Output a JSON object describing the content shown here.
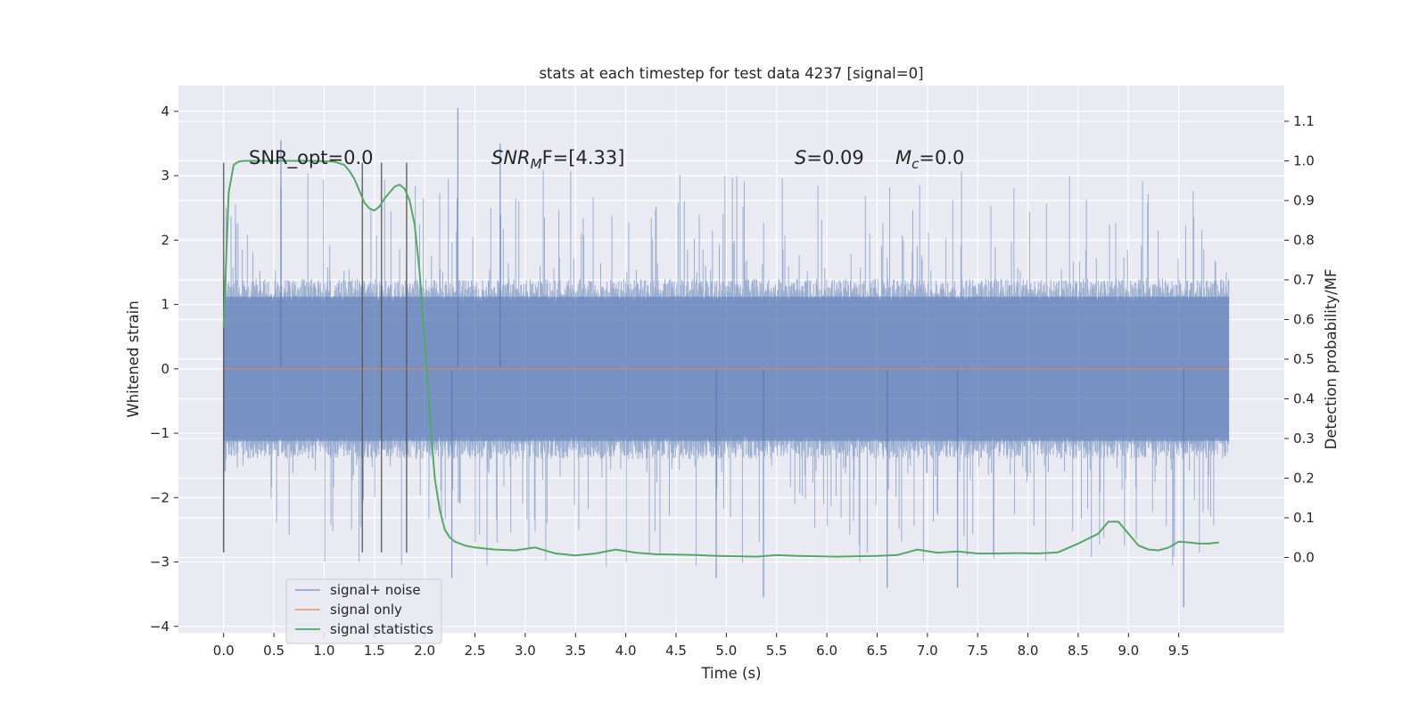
{
  "chart_data": {
    "type": "line",
    "title": "stats at each timestep for test data 4237 [signal=0]",
    "xlabel": "Time (s)",
    "ylabel": "Whitened strain",
    "y2label": "Detection probability/MF",
    "xlim": [
      -0.45,
      10.55
    ],
    "ylim": [
      -4.1,
      4.4
    ],
    "y2lim": [
      -0.19,
      1.19
    ],
    "xticks": [
      "0.0",
      "0.5",
      "1.0",
      "1.5",
      "2.0",
      "2.5",
      "3.0",
      "3.5",
      "4.0",
      "4.5",
      "5.0",
      "5.5",
      "6.0",
      "6.5",
      "7.0",
      "7.5",
      "8.0",
      "8.5",
      "9.0",
      "9.5"
    ],
    "yticks": [
      "4",
      "3",
      "2",
      "1",
      "0",
      "−1",
      "−2",
      "−3",
      "−4"
    ],
    "y2ticks": [
      "1.1",
      "1.0",
      "0.9",
      "0.8",
      "0.7",
      "0.6",
      "0.5",
      "0.4",
      "0.3",
      "0.2",
      "0.1",
      "0.0"
    ],
    "grid": true,
    "legend_position": "lower-left",
    "annotations": {
      "snr_opt": "SNR_opt=0.0",
      "snr_mf_main": "SNR",
      "snr_mf_sub": "M",
      "snr_mf_rest": "F=[4.33]",
      "s_var": "S",
      "s_val": "=0.09",
      "mc_var": "M",
      "mc_sub": "c",
      "mc_val": "=0.0"
    },
    "vertical_markers_x": [
      0.0,
      1.38,
      1.57,
      1.82
    ],
    "series": [
      {
        "name": "signal+ noise",
        "color": "#4c72b0",
        "x_range": [
          0.0,
          10.0
        ],
        "core_amplitude": 1.4,
        "spike_maxima": [
          {
            "x": 2.33,
            "y": 4.05
          },
          {
            "x": 2.27,
            "y": -3.25
          },
          {
            "x": 0.57,
            "y": 3.55
          },
          {
            "x": 5.37,
            "y": -3.55
          },
          {
            "x": 9.55,
            "y": -3.7
          },
          {
            "x": 2.75,
            "y": 3.5
          },
          {
            "x": 6.6,
            "y": -3.4
          },
          {
            "x": 4.9,
            "y": -3.25
          },
          {
            "x": 7.3,
            "y": -3.4
          },
          {
            "x": 0.0,
            "y": -2.85
          }
        ]
      },
      {
        "name": "signal only",
        "color": "#dd8452",
        "x": [
          0.0,
          10.0
        ],
        "y": [
          0.0,
          0.0
        ]
      },
      {
        "name": "signal statistics",
        "color": "#55a868",
        "axis": "right",
        "x": [
          0.0,
          0.05,
          0.1,
          0.15,
          0.2,
          0.3,
          0.5,
          0.7,
          0.9,
          1.1,
          1.2,
          1.25,
          1.3,
          1.35,
          1.4,
          1.45,
          1.5,
          1.55,
          1.6,
          1.65,
          1.7,
          1.75,
          1.8,
          1.85,
          1.9,
          1.95,
          2.0,
          2.05,
          2.1,
          2.15,
          2.2,
          2.25,
          2.3,
          2.4,
          2.5,
          2.7,
          2.9,
          3.1,
          3.3,
          3.5,
          3.7,
          3.9,
          4.1,
          4.3,
          4.5,
          4.7,
          4.9,
          5.1,
          5.3,
          5.5,
          5.7,
          5.9,
          6.1,
          6.3,
          6.5,
          6.7,
          6.9,
          7.1,
          7.3,
          7.5,
          7.7,
          7.9,
          8.1,
          8.3,
          8.5,
          8.7,
          8.8,
          8.9,
          9.0,
          9.1,
          9.2,
          9.3,
          9.4,
          9.5,
          9.6,
          9.7,
          9.8,
          9.9
        ],
        "y": [
          0.58,
          0.92,
          0.99,
          0.998,
          1.0,
          1.0,
          1.0,
          1.0,
          1.0,
          0.998,
          0.99,
          0.975,
          0.955,
          0.925,
          0.895,
          0.88,
          0.875,
          0.885,
          0.905,
          0.92,
          0.935,
          0.94,
          0.93,
          0.9,
          0.84,
          0.72,
          0.55,
          0.36,
          0.2,
          0.12,
          0.07,
          0.05,
          0.04,
          0.03,
          0.025,
          0.02,
          0.018,
          0.025,
          0.01,
          0.005,
          0.01,
          0.02,
          0.012,
          0.008,
          0.007,
          0.006,
          0.004,
          0.003,
          0.002,
          0.006,
          0.004,
          0.003,
          0.002,
          0.003,
          0.004,
          0.006,
          0.02,
          0.012,
          0.015,
          0.01,
          0.01,
          0.011,
          0.01,
          0.013,
          0.035,
          0.06,
          0.09,
          0.09,
          0.06,
          0.03,
          0.02,
          0.018,
          0.025,
          0.04,
          0.038,
          0.035,
          0.035,
          0.038
        ]
      }
    ]
  }
}
